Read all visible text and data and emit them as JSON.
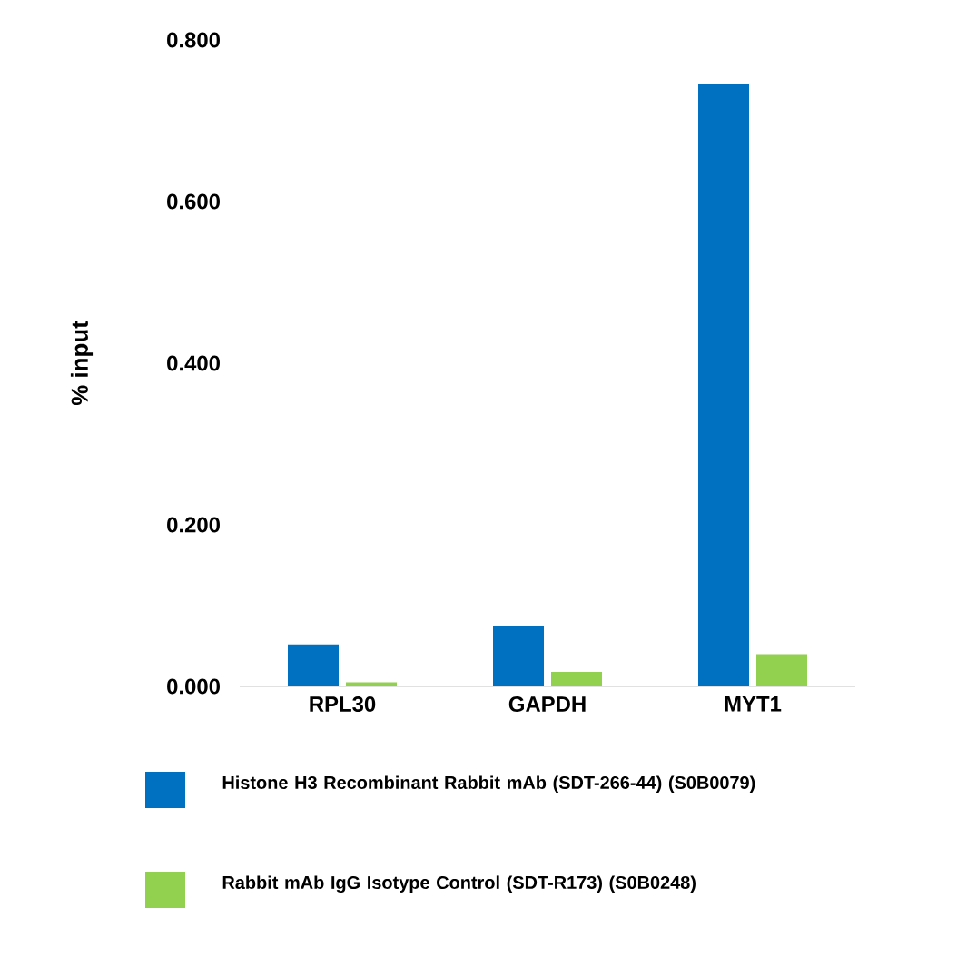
{
  "chart_data": {
    "type": "bar",
    "ylabel": "% input",
    "categories": [
      "RPL30",
      "GAPDH",
      "MYT1"
    ],
    "series": [
      {
        "name": "Histone H3 Recombinant  Rabbit mAb (SDT-266-44) (S0B0079)",
        "color": "#0070c0",
        "values": [
          0.052,
          0.075,
          0.745
        ]
      },
      {
        "name": "Rabbit mAb IgG Isotype Control (SDT-R173) (S0B0248)",
        "color": "#92d050",
        "values": [
          0.005,
          0.018,
          0.04
        ]
      }
    ],
    "ylim": [
      0,
      0.8
    ],
    "yticks": [
      {
        "value": 0,
        "label": "0.000"
      },
      {
        "value": 0.2,
        "label": "0.200"
      },
      {
        "value": 0.4,
        "label": "0.400"
      },
      {
        "value": 0.6,
        "label": "0.600"
      },
      {
        "value": 0.8,
        "label": "0.800"
      }
    ],
    "grid": false,
    "legend": "bottom"
  }
}
